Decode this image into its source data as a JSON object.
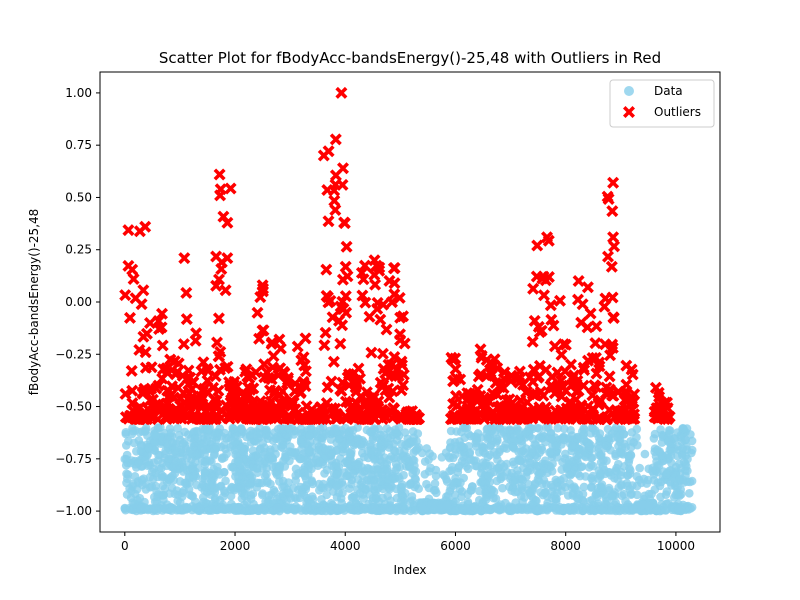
{
  "chart_data": {
    "type": "scatter",
    "title": "Scatter Plot for fBodyAcc-bandsEnergy()-25,48 with Outliers in Red",
    "xlabel": "Index",
    "ylabel": "fBodyAcc-bandsEnergy()-25,48",
    "xlim": [
      -450,
      10800
    ],
    "ylim": [
      -1.1,
      1.1
    ],
    "xticks": [
      0,
      2000,
      4000,
      6000,
      8000,
      10000
    ],
    "xtick_labels": [
      "0",
      "2000",
      "4000",
      "6000",
      "8000",
      "10000"
    ],
    "yticks": [
      -1.0,
      -0.75,
      -0.5,
      -0.25,
      0.0,
      0.25,
      0.5,
      0.75,
      1.0
    ],
    "ytick_labels": [
      "−1.00",
      "−0.75",
      "−0.50",
      "−0.25",
      "0.00",
      "0.25",
      "0.50",
      "0.75",
      "1.00"
    ],
    "grid": false,
    "legend_position": "upper-right",
    "series": [
      {
        "name": "Data",
        "color": "#87ceeb",
        "marker": "circle",
        "outlier_threshold": -0.58
      },
      {
        "name": "Outliers",
        "color": "#ff0000",
        "marker": "x"
      }
    ],
    "x_range": [
      0,
      10300
    ],
    "outlier_clusters": [
      [
        0,
        450,
        0.36
      ],
      [
        450,
        700,
        -0.03
      ],
      [
        700,
        1050,
        -0.27
      ],
      [
        1050,
        1150,
        0.21
      ],
      [
        1150,
        1450,
        -0.12
      ],
      [
        1450,
        1650,
        -0.3
      ],
      [
        1650,
        1950,
        0.62
      ],
      [
        1950,
        2400,
        -0.32
      ],
      [
        2400,
        2600,
        0.08
      ],
      [
        2600,
        2950,
        -0.15
      ],
      [
        2950,
        3350,
        -0.17
      ],
      [
        3350,
        3600,
        -0.5
      ],
      [
        3600,
        4050,
        1.0
      ],
      [
        4050,
        4300,
        -0.3
      ],
      [
        4300,
        4950,
        0.2
      ],
      [
        4950,
        5100,
        0.02
      ],
      [
        5100,
        5350,
        -0.52
      ],
      [
        5900,
        6050,
        -0.22
      ],
      [
        6050,
        6350,
        -0.37
      ],
      [
        6350,
        6500,
        -0.22
      ],
      [
        6500,
        7050,
        -0.27
      ],
      [
        7050,
        7400,
        -0.32
      ],
      [
        7400,
        7900,
        0.31
      ],
      [
        7900,
        8200,
        -0.17
      ],
      [
        8200,
        8650,
        0.14
      ],
      [
        8650,
        8900,
        0.57
      ],
      [
        8900,
        9100,
        -0.42
      ],
      [
        9100,
        9250,
        -0.3
      ],
      [
        9600,
        9700,
        -0.4
      ],
      [
        9700,
        9900,
        -0.48
      ]
    ],
    "noted_outliers": [
      [
        3930,
        1.0
      ],
      [
        3960,
        0.64
      ],
      [
        3950,
        0.56
      ],
      [
        1720,
        0.61
      ],
      [
        1730,
        0.51
      ],
      [
        8860,
        0.57
      ],
      [
        370,
        0.36
      ],
      [
        7660,
        0.31
      ],
      [
        8860,
        0.31
      ],
      [
        1080,
        0.21
      ],
      [
        1860,
        0.21
      ],
      [
        1760,
        0.19
      ],
      [
        4530,
        0.2
      ],
      [
        2500,
        0.08
      ],
      [
        160,
        0.11
      ],
      [
        3820,
        0.44
      ],
      [
        3980,
        0.38
      ]
    ]
  }
}
